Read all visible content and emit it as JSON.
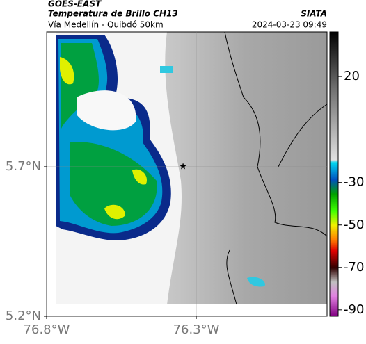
{
  "header": {
    "title": "GOES-EAST",
    "subtitle": "Temperatura de Brillo CH13",
    "location": "Vía Medellín - Quibdó 50km",
    "source": "SIATA",
    "datetime": "2024-03-23 09:49"
  },
  "map": {
    "xlim": [
      -76.8,
      -75.863
    ],
    "ylim": [
      5.2,
      6.151
    ],
    "xticks": [
      {
        "value": -76.8,
        "label": "76.8°W"
      },
      {
        "value": -76.3,
        "label": "76.3°W"
      }
    ],
    "yticks": [
      {
        "value": 5.7,
        "label": "5.7°N"
      },
      {
        "value": 5.2,
        "label": "5.2°N"
      }
    ],
    "marker": {
      "lon": -76.344,
      "lat": 5.7
    }
  },
  "colorbar": {
    "lim": [
      -93,
      41
    ],
    "ticks": [
      20,
      -30,
      -50,
      -70,
      -90
    ]
  }
}
